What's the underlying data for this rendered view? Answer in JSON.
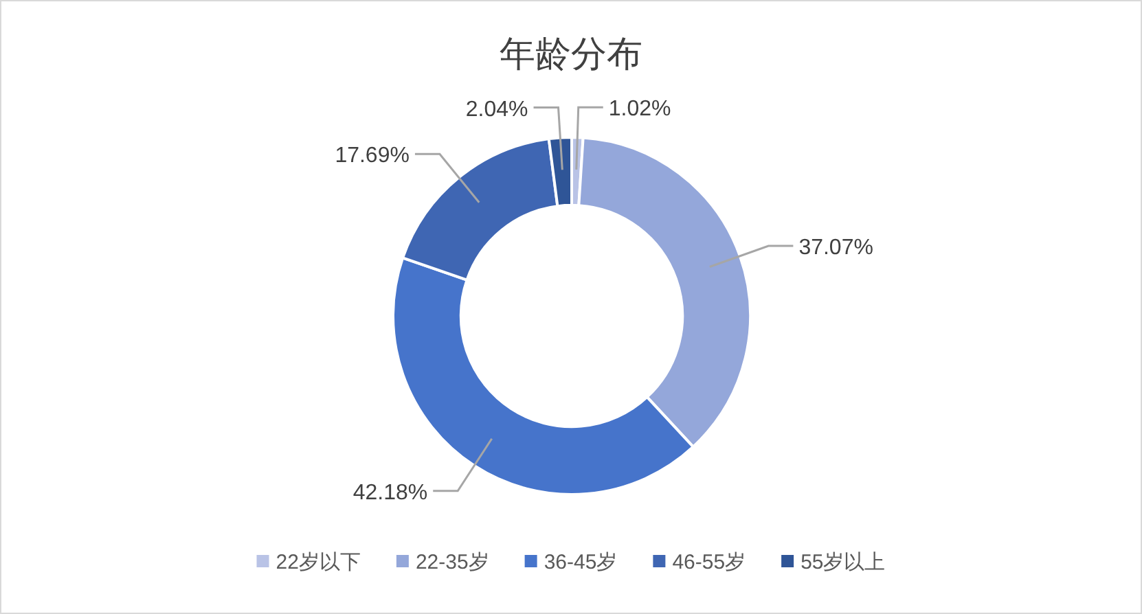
{
  "chart_data": {
    "type": "donut",
    "title": "年龄分布",
    "categories": [
      "22岁以下",
      "22-35岁",
      "36-45岁",
      "46-55岁",
      "55岁以上"
    ],
    "values": [
      1.02,
      37.07,
      42.18,
      17.69,
      2.04
    ],
    "colors": [
      "#b9c3e6",
      "#94a7da",
      "#4674cb",
      "#3f66b3",
      "#2f5597"
    ],
    "value_labels": [
      "1.02%",
      "37.07%",
      "42.18%",
      "17.69%",
      "2.04%"
    ],
    "legend": "bottom"
  }
}
